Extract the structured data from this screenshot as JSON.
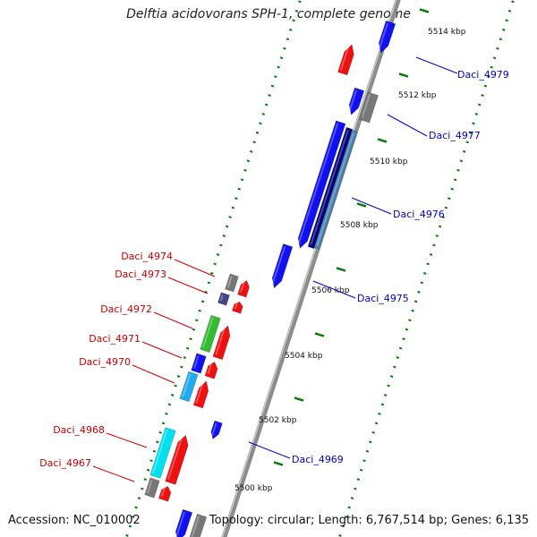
{
  "title": "Delftia acidovorans SPH-1, complete genome",
  "footer": {
    "accession": "Accession: NC_010002",
    "summary": "Topology: circular; Length: 6,767,514 bp; Genes: 6,135"
  },
  "ruler": [
    "5514 kbp",
    "5512 kbp",
    "5510 kbp",
    "5508 kbp",
    "5506 kbp",
    "5504 kbp",
    "5502 kbp",
    "5500 kbp"
  ],
  "genes": [
    {
      "id": "Daci_4979",
      "color": "#0000cc"
    },
    {
      "id": "Daci_4977",
      "color": "#0000cc"
    },
    {
      "id": "Daci_4976",
      "color": "#0000cc"
    },
    {
      "id": "Daci_4975",
      "color": "#0000cc"
    },
    {
      "id": "Daci_4974",
      "color": "#cc0000"
    },
    {
      "id": "Daci_4973",
      "color": "#cc0000"
    },
    {
      "id": "Daci_4972",
      "color": "#cc0000"
    },
    {
      "id": "Daci_4971",
      "color": "#cc0000"
    },
    {
      "id": "Daci_4970",
      "color": "#cc0000"
    },
    {
      "id": "Daci_4969",
      "color": "#0000cc"
    },
    {
      "id": "Daci_4968",
      "color": "#cc0000"
    },
    {
      "id": "Daci_4967",
      "color": "#cc0000"
    }
  ],
  "colors": {
    "backbone": "#8c8c8c",
    "dots": "#0a7a0a",
    "red": "#ee1111",
    "blue": "#1111ee",
    "navy": "#000077",
    "steel": "#4682b4",
    "grey": "#777777",
    "slate": "#444488",
    "green": "#33bb33",
    "cyan": "#00e0f0",
    "sky": "#22aaee"
  }
}
